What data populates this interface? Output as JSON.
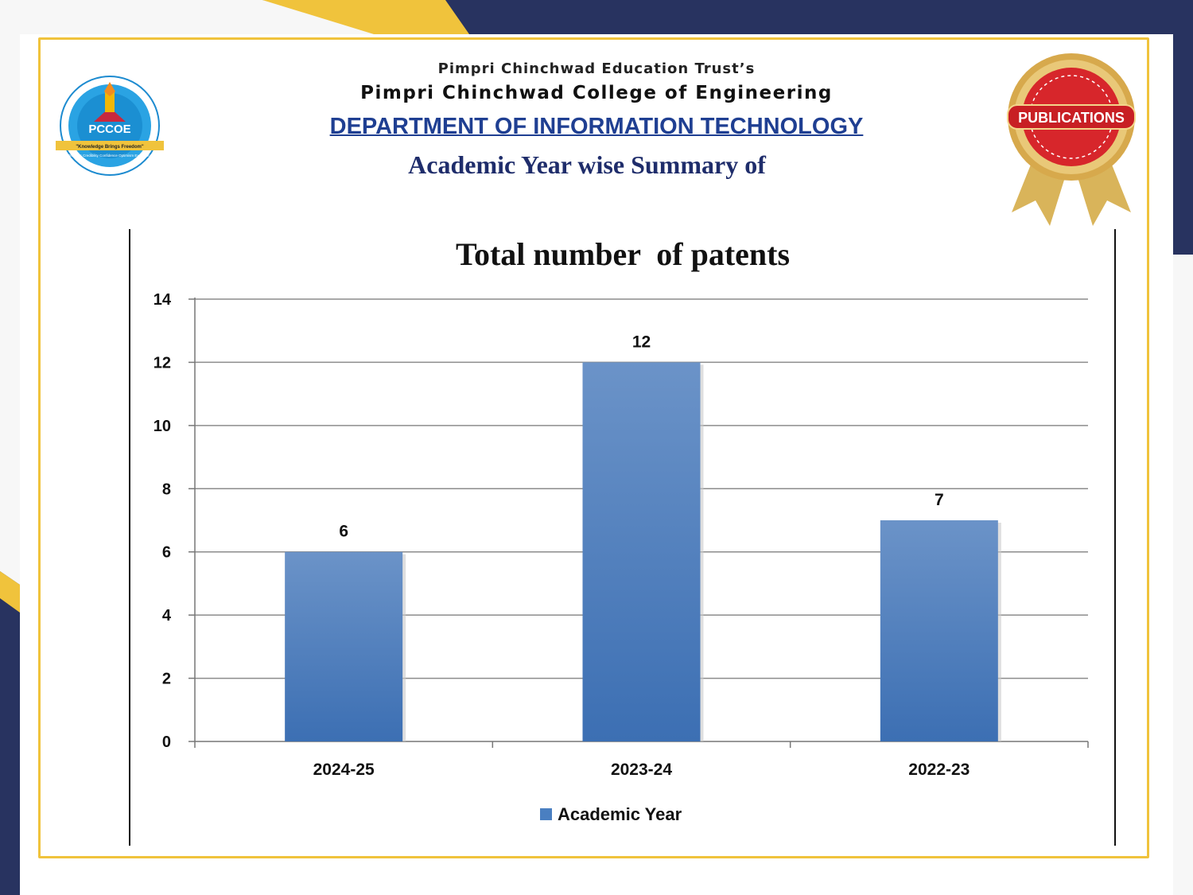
{
  "header": {
    "trust": "Pimpri Chinchwad Education Trust’s",
    "college": "Pimpri Chinchwad College of Engineering",
    "department": "DEPARTMENT OF INFORMATION TECHNOLOGY",
    "summary": "Academic Year wise Summary of"
  },
  "logo": {
    "text": "PCCOE",
    "motto": "\"Knowledge Brings Freedom\"",
    "ring_text": "PCET's Pimpri Chinchwad College of Engineering",
    "sub_text": "Progress Credibility Confidence Optimism Excellence",
    "since": "SINCE 1999"
  },
  "badge": {
    "label": "PUBLICATIONS"
  },
  "colors": {
    "navy": "#283360",
    "gold": "#f0c33c",
    "bar": "#4a7fc1",
    "badge_red": "#d7262b"
  },
  "chart_data": {
    "type": "bar",
    "title": "Total number  of patents",
    "categories": [
      "2024-25",
      "2023-24",
      "2022-23"
    ],
    "series": [
      {
        "name": "Academic Year",
        "values": [
          6,
          12,
          7
        ]
      }
    ],
    "ylim": [
      0,
      14
    ],
    "yticks": [
      0,
      2,
      4,
      6,
      8,
      10,
      12,
      14
    ],
    "grid": true,
    "legend": "bottom",
    "data_labels": true
  }
}
